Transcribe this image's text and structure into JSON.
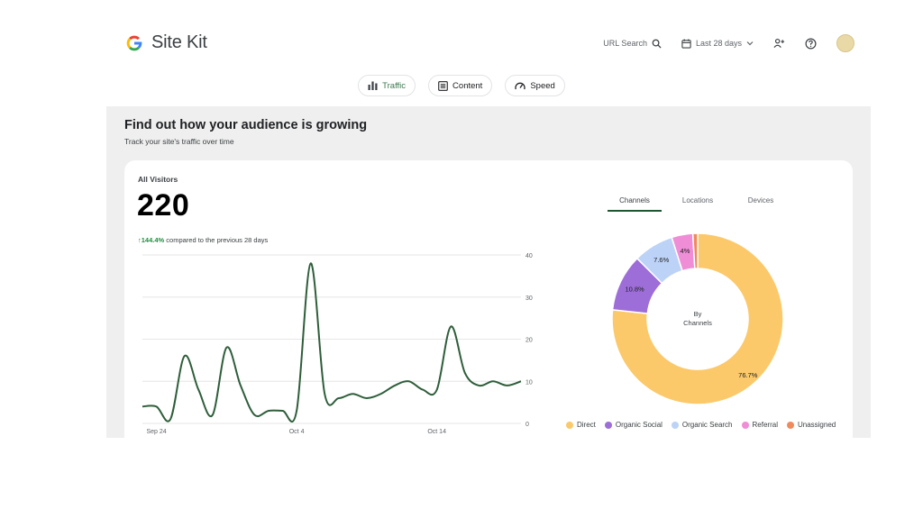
{
  "app": {
    "title": "Site Kit"
  },
  "header": {
    "url_search": "URL Search",
    "date_range": "Last 28 days"
  },
  "tabs": [
    {
      "label": "Traffic"
    },
    {
      "label": "Content"
    },
    {
      "label": "Speed"
    }
  ],
  "section": {
    "title": "Find out how your audience is growing",
    "subtitle": "Track your site's traffic over time"
  },
  "visitors": {
    "label": "All Visitors",
    "value": "220",
    "change_pct": "144.4%",
    "change_text": "compared to the previous 28 days"
  },
  "chart_tabs": [
    {
      "label": "Channels"
    },
    {
      "label": "Locations"
    },
    {
      "label": "Devices"
    }
  ],
  "donut": {
    "center_line1": "By",
    "center_line2": "Channels"
  },
  "colors": {
    "line": "#2e5e3a",
    "direct": "#fbc96a",
    "organic_social": "#9d6ed8",
    "organic_search": "#bcd3f7",
    "referral": "#ef8ed6",
    "unassigned": "#f08a5d"
  },
  "chart_data": [
    {
      "type": "line",
      "title": "",
      "x_tick_labels": [
        "Sep 24",
        "Oct 4",
        "Oct 14"
      ],
      "x_tick_index": [
        1,
        11,
        21
      ],
      "y_ticks": [
        0,
        10,
        20,
        30,
        40
      ],
      "ylim": [
        0,
        40
      ],
      "grid": true,
      "series": [
        {
          "values": [
            4,
            4,
            1,
            16,
            8,
            2,
            18,
            9,
            2,
            3,
            3,
            3,
            38,
            7,
            6,
            7,
            6,
            7,
            9,
            10,
            8,
            8,
            23,
            12,
            9,
            10,
            9,
            10
          ]
        }
      ]
    },
    {
      "type": "pie",
      "labels": [
        "Direct",
        "Organic Social",
        "Organic Search",
        "Referral",
        "Unassigned"
      ],
      "values": [
        76.7,
        10.8,
        7.6,
        4.0,
        0.9
      ],
      "value_labels": [
        "76.7%",
        "10.8%",
        "7.6%",
        "4%",
        ""
      ]
    }
  ]
}
